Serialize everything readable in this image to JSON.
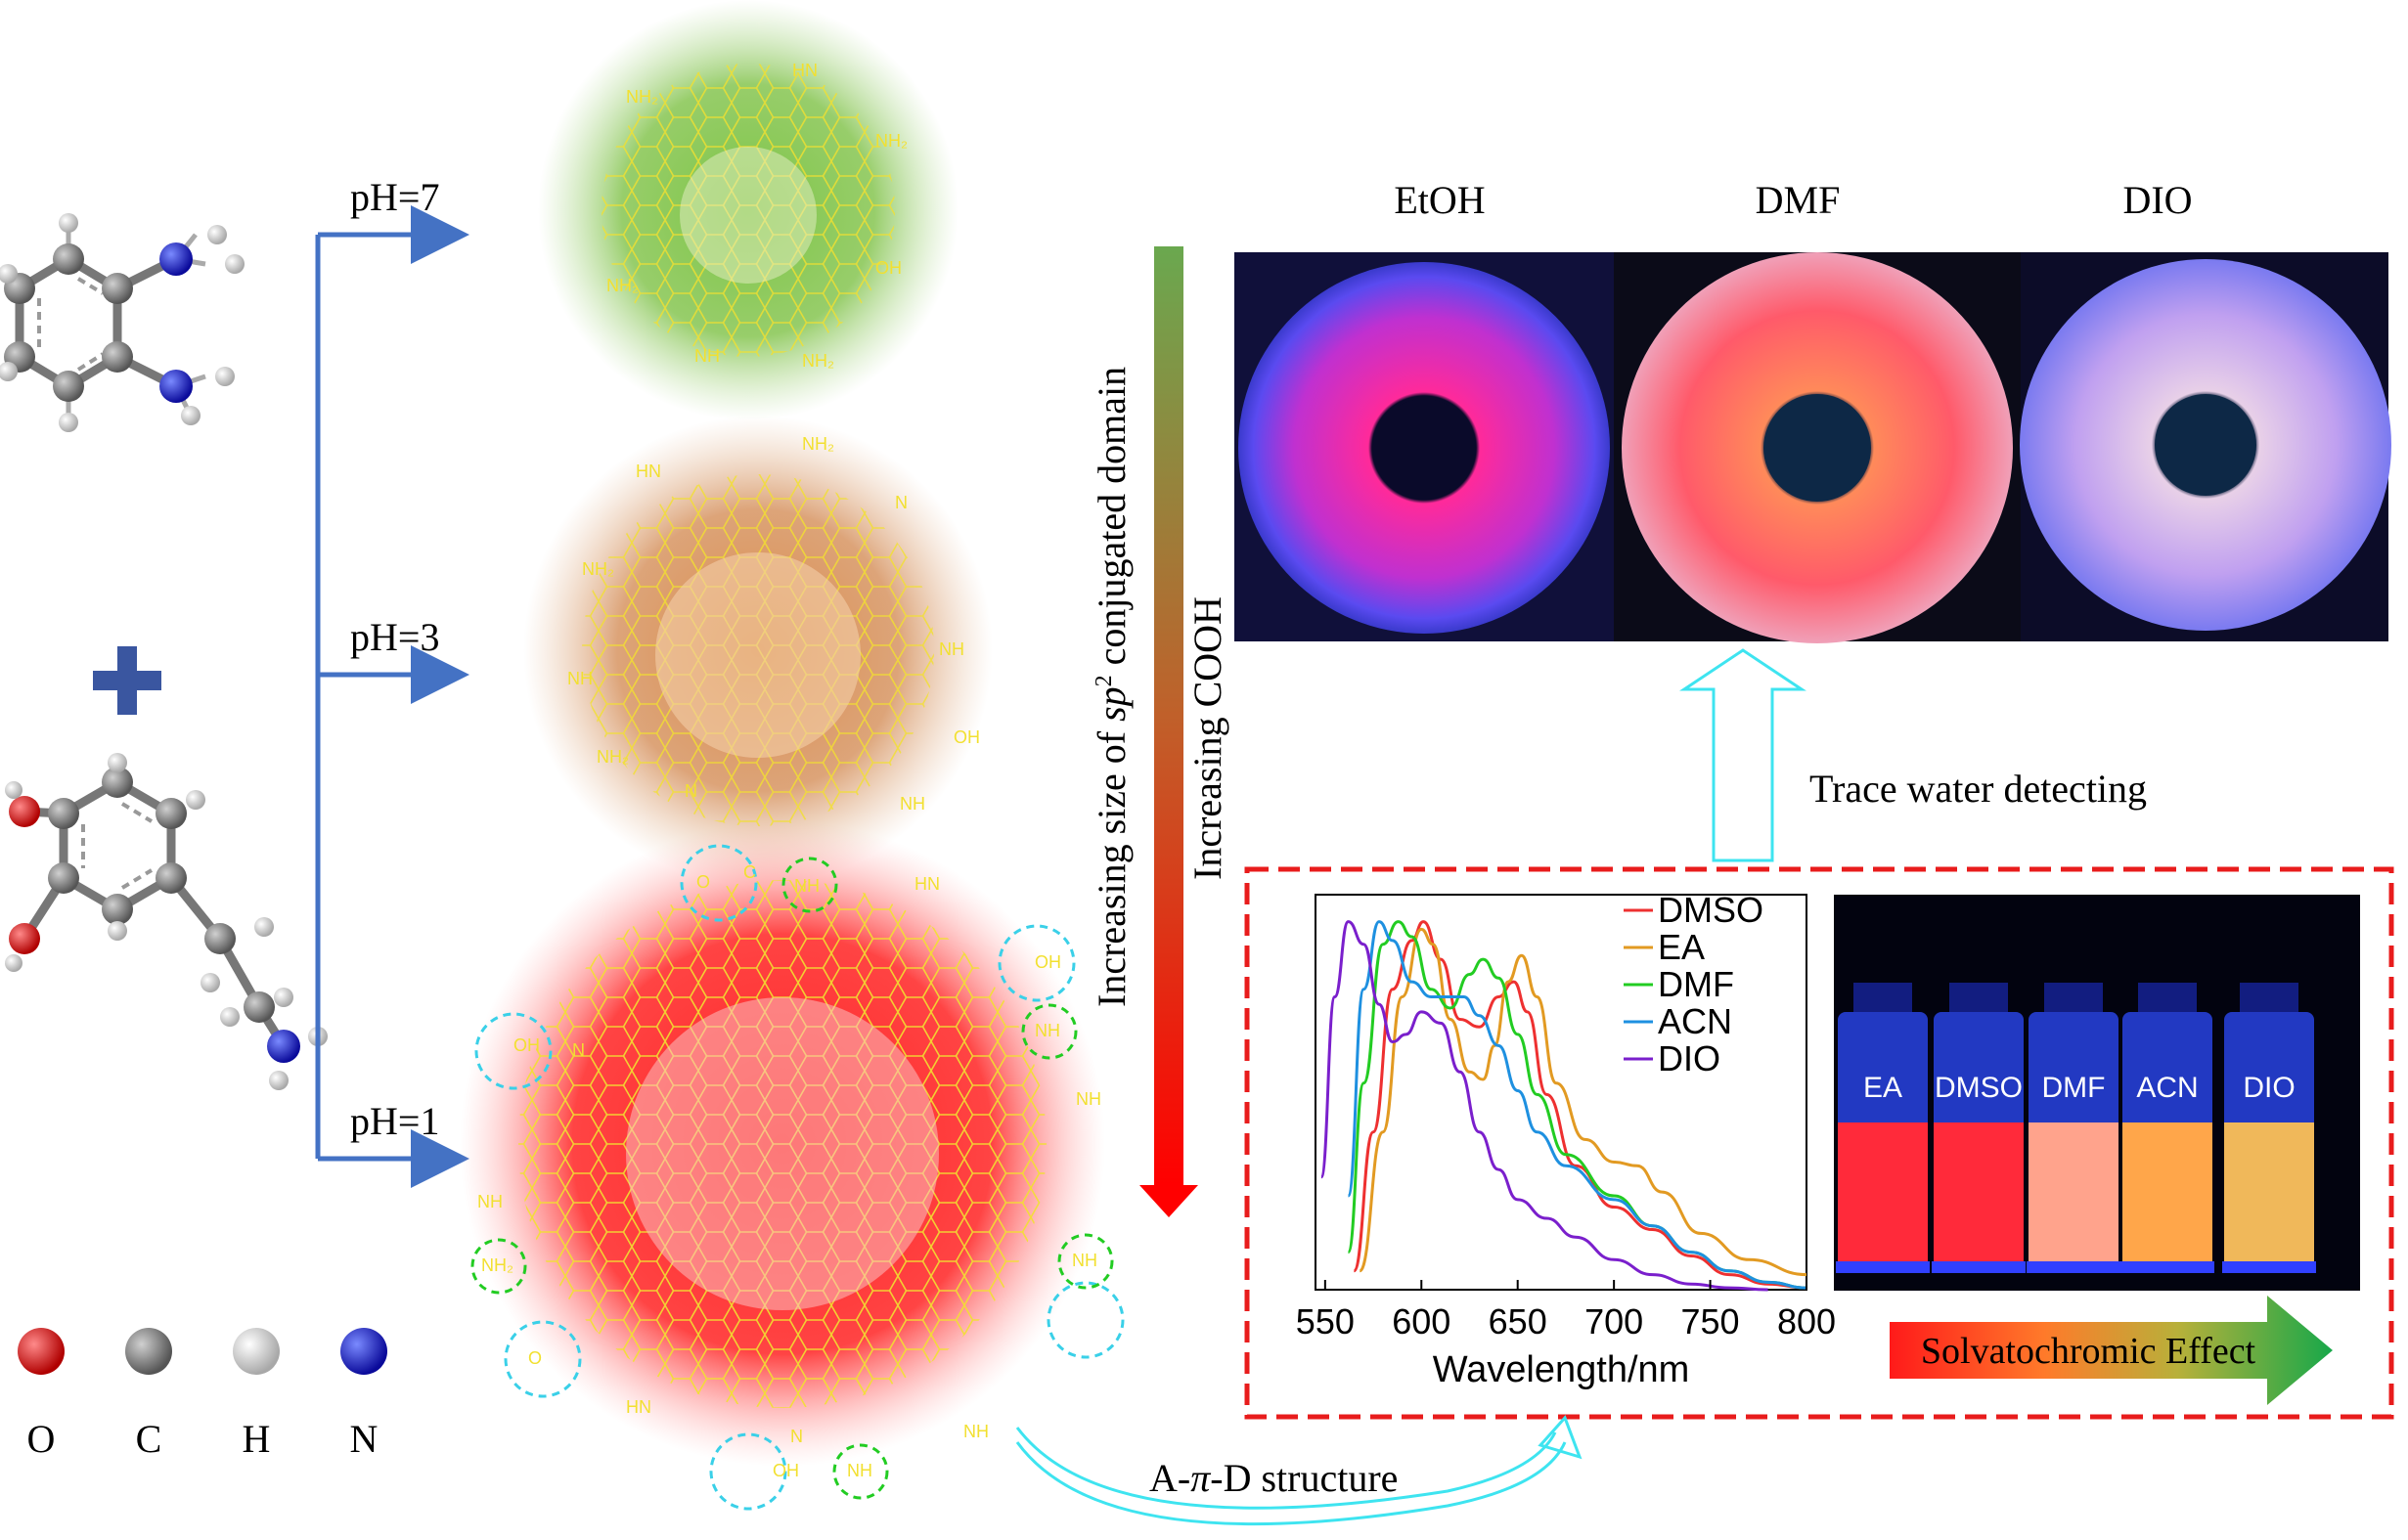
{
  "ph_labels": [
    "pH=7",
    "pH=3",
    "pH=1"
  ],
  "atom_legend": [
    {
      "symbol": "O",
      "color": "#d41c1c"
    },
    {
      "symbol": "C",
      "color": "#8a8a8a"
    },
    {
      "symbol": "H",
      "color": "#e8e8e8"
    },
    {
      "symbol": "N",
      "color": "#1a23c8"
    }
  ],
  "gradient_arrow": {
    "label_left_prefix": "Increasing size of ",
    "label_left_italic": "sp",
    "label_left_sup": "2",
    "label_left_suffix": " conjugated domain",
    "label_right": "Increasing COOH",
    "color_top": "#6aa84f",
    "color_bottom": "#ff0000"
  },
  "solvent_titles": [
    "EtOH",
    "DMF",
    "DIO"
  ],
  "trace_water_label": "Trace water detecting",
  "structure_label_prefix": "A-",
  "structure_label_italic": "π",
  "structure_label_suffix": "-D structure",
  "vials": {
    "labels": [
      "EA",
      "DMSO",
      "DMF",
      "ACN",
      "DIO"
    ],
    "liquid_colors": [
      "#ff2a3a",
      "#ff2a3a",
      "#ffa38c",
      "#ffa64a",
      "#f0b85a"
    ]
  },
  "solvatochromic_label": "Solvatochromic Effect",
  "molecule_labels": {
    "nh2": "NH₂",
    "nh": "NH",
    "hn": "HN",
    "oh": "OH",
    "n": "N",
    "o": "O",
    "c": "C"
  },
  "chart_data": {
    "type": "line",
    "title": "",
    "xlabel": "Wavelength/nm",
    "ylabel": "",
    "xlim": [
      545,
      800
    ],
    "ylim": [
      0,
      1.0
    ],
    "xticks": [
      550,
      600,
      650,
      700,
      750,
      800
    ],
    "legend_position": "top-right",
    "series": [
      {
        "name": "DMSO",
        "color": "#ee3030",
        "x": [
          565,
          575,
          585,
          595,
          601,
          610,
          620,
          630,
          640,
          648,
          655,
          665,
          680,
          700,
          720,
          740,
          760,
          780,
          800
        ],
        "y": [
          0.05,
          0.42,
          0.8,
          0.93,
          0.98,
          0.88,
          0.72,
          0.7,
          0.78,
          0.82,
          0.74,
          0.52,
          0.33,
          0.22,
          0.16,
          0.09,
          0.04,
          0.015,
          0.005
        ]
      },
      {
        "name": "EA",
        "color": "#e29a22",
        "x": [
          568,
          580,
          590,
          600,
          606,
          615,
          625,
          632,
          638,
          645,
          652,
          660,
          670,
          685,
          700,
          712,
          725,
          745,
          770,
          800
        ],
        "y": [
          0.05,
          0.42,
          0.78,
          0.96,
          0.92,
          0.72,
          0.58,
          0.56,
          0.65,
          0.82,
          0.89,
          0.78,
          0.55,
          0.4,
          0.34,
          0.33,
          0.26,
          0.15,
          0.08,
          0.04
        ]
      },
      {
        "name": "DMF",
        "color": "#22cc22",
        "x": [
          562,
          570,
          580,
          588,
          595,
          605,
          615,
          625,
          632,
          640,
          650,
          660,
          675,
          700,
          720,
          740,
          760,
          780,
          800
        ],
        "y": [
          0.1,
          0.55,
          0.92,
          0.98,
          0.94,
          0.8,
          0.75,
          0.84,
          0.88,
          0.83,
          0.68,
          0.52,
          0.36,
          0.25,
          0.17,
          0.1,
          0.05,
          0.02,
          0.005
        ]
      },
      {
        "name": "ACN",
        "color": "#1e90e0",
        "x": [
          562,
          570,
          578,
          585,
          595,
          605,
          615,
          622,
          630,
          640,
          650,
          660,
          675,
          700,
          720,
          740,
          760,
          780,
          800
        ],
        "y": [
          0.25,
          0.8,
          0.98,
          0.93,
          0.82,
          0.78,
          0.78,
          0.78,
          0.73,
          0.65,
          0.53,
          0.42,
          0.33,
          0.24,
          0.17,
          0.1,
          0.05,
          0.02,
          0.005
        ]
      },
      {
        "name": "DIO",
        "color": "#7a1fcc",
        "x": [
          548,
          555,
          562,
          570,
          578,
          585,
          592,
          600,
          610,
          620,
          630,
          640,
          650,
          665,
          680,
          700,
          720,
          740,
          760,
          780
        ],
        "y": [
          0.3,
          0.78,
          0.98,
          0.92,
          0.76,
          0.66,
          0.68,
          0.74,
          0.71,
          0.58,
          0.42,
          0.32,
          0.24,
          0.19,
          0.14,
          0.08,
          0.04,
          0.015,
          0.005,
          0.0
        ]
      }
    ]
  }
}
